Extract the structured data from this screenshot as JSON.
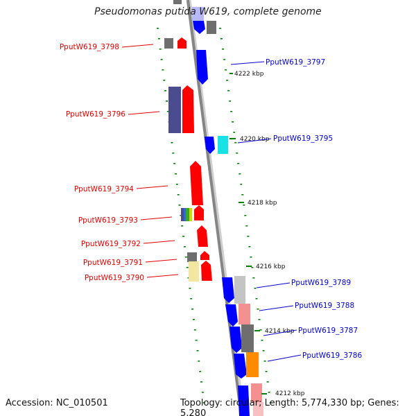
{
  "header": {
    "title": "Pseudomonas putida W619, complete genome"
  },
  "footer": {
    "accession": "Accession: NC_010501",
    "topology": "Topology: circular; Length: 5,774,330 bp; Genes: 5,280"
  },
  "colors": {
    "forward_label": "#e00000",
    "reverse_label": "#0000cc",
    "backbone": "#888888",
    "tick_dash": "#008000"
  },
  "ticks": [
    "4222 kbp",
    "4220 kbp",
    "4218 kbp",
    "4216 kbp",
    "4214 kbp",
    "4212 kbp"
  ],
  "genes_forward": [
    "PputW619_3798",
    "PputW619_3796",
    "PputW619_3794",
    "PputW619_3793",
    "PputW619_3792",
    "PputW619_3791",
    "PputW619_3790"
  ],
  "genes_reverse": [
    "PputW619_3797",
    "PputW619_3795",
    "PputW619_3789",
    "PputW619_3788",
    "PputW619_3787",
    "PputW619_3786"
  ]
}
